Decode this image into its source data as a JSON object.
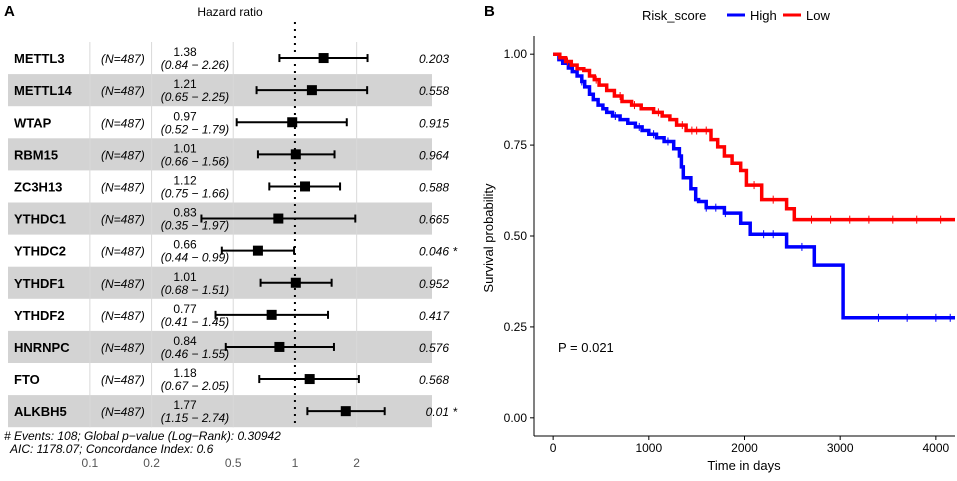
{
  "colors": {
    "high": "#0000ff",
    "low": "#ff0000",
    "stripe": "#d3d3d3",
    "grid": "#d9d9d9",
    "ink": "#000000"
  },
  "chart_data": [
    {
      "panel_label": "A",
      "type": "forest",
      "title": "Hazard ratio",
      "x_scale": "log",
      "xlim": [
        0.08,
        3.6
      ],
      "reference_line": 1,
      "xticks": [
        0.1,
        0.2,
        0.5,
        1,
        2
      ],
      "xtick_labels": [
        "0.1",
        "0.2",
        "0.5",
        "1",
        "2"
      ],
      "rows": [
        {
          "gene": "METTL3",
          "n": "(N=487)",
          "hr": 1.38,
          "ci_low": 0.84,
          "ci_high": 2.26,
          "hr_text": "1.38",
          "ci_text": "(0.84 − 2.26)",
          "p": "0.203",
          "sig": ""
        },
        {
          "gene": "METTL14",
          "n": "(N=487)",
          "hr": 1.21,
          "ci_low": 0.65,
          "ci_high": 2.25,
          "hr_text": "1.21",
          "ci_text": "(0.65 − 2.25)",
          "p": "0.558",
          "sig": ""
        },
        {
          "gene": "WTAP",
          "n": "(N=487)",
          "hr": 0.97,
          "ci_low": 0.52,
          "ci_high": 1.79,
          "hr_text": "0.97",
          "ci_text": "(0.52 − 1.79)",
          "p": "0.915",
          "sig": ""
        },
        {
          "gene": "RBM15",
          "n": "(N=487)",
          "hr": 1.01,
          "ci_low": 0.66,
          "ci_high": 1.56,
          "hr_text": "1.01",
          "ci_text": "(0.66 − 1.56)",
          "p": "0.964",
          "sig": ""
        },
        {
          "gene": "ZC3H13",
          "n": "(N=487)",
          "hr": 1.12,
          "ci_low": 0.75,
          "ci_high": 1.66,
          "hr_text": "1.12",
          "ci_text": "(0.75 − 1.66)",
          "p": "0.588",
          "sig": ""
        },
        {
          "gene": "YTHDC1",
          "n": "(N=487)",
          "hr": 0.83,
          "ci_low": 0.35,
          "ci_high": 1.97,
          "hr_text": "0.83",
          "ci_text": "(0.35 − 1.97)",
          "p": "0.665",
          "sig": ""
        },
        {
          "gene": "YTHDC2",
          "n": "(N=487)",
          "hr": 0.66,
          "ci_low": 0.44,
          "ci_high": 0.99,
          "hr_text": "0.66",
          "ci_text": "(0.44 − 0.99)",
          "p": "0.046",
          "sig": "*"
        },
        {
          "gene": "YTHDF1",
          "n": "(N=487)",
          "hr": 1.01,
          "ci_low": 0.68,
          "ci_high": 1.51,
          "hr_text": "1.01",
          "ci_text": "(0.68 − 1.51)",
          "p": "0.952",
          "sig": ""
        },
        {
          "gene": "YTHDF2",
          "n": "(N=487)",
          "hr": 0.77,
          "ci_low": 0.41,
          "ci_high": 1.45,
          "hr_text": "0.77",
          "ci_text": "(0.41 − 1.45)",
          "p": "0.417",
          "sig": ""
        },
        {
          "gene": "HNRNPC",
          "n": "(N=487)",
          "hr": 0.84,
          "ci_low": 0.46,
          "ci_high": 1.55,
          "hr_text": "0.84",
          "ci_text": "(0.46 − 1.55)",
          "p": "0.576",
          "sig": ""
        },
        {
          "gene": "FTO",
          "n": "(N=487)",
          "hr": 1.18,
          "ci_low": 0.67,
          "ci_high": 2.05,
          "hr_text": "1.18",
          "ci_text": "(0.67 − 2.05)",
          "p": "0.568",
          "sig": ""
        },
        {
          "gene": "ALKBH5",
          "n": "(N=487)",
          "hr": 1.77,
          "ci_low": 1.15,
          "ci_high": 2.74,
          "hr_text": "1.77",
          "ci_text": "(1.15 − 2.74)",
          "p": "0.01",
          "sig": "*"
        }
      ],
      "footer": [
        "# Events: 108; Global p−value (Log−Rank): 0.30942",
        "AIC: 1178.07; Concordance Index: 0.6"
      ]
    },
    {
      "panel_label": "B",
      "type": "line",
      "subtype": "kaplan-meier",
      "xlabel": "Time in days",
      "ylabel": "Survival probability",
      "xlim": [
        -200,
        4200
      ],
      "ylim": [
        -0.05,
        1.05
      ],
      "xticks": [
        0,
        1000,
        2000,
        3000,
        4000
      ],
      "yticks": [
        0.0,
        0.25,
        0.5,
        0.75,
        1.0
      ],
      "ytick_labels": [
        "0.00",
        "0.25",
        "0.50",
        "0.75",
        "1.00"
      ],
      "legend_title": "Risk_score",
      "legend_position": "top",
      "annotation": "P = 0.021",
      "series": [
        {
          "name": "High",
          "color_key": "high",
          "steps": [
            [
              0,
              1.0
            ],
            [
              60,
              0.985
            ],
            [
              100,
              0.975
            ],
            [
              160,
              0.962
            ],
            [
              200,
              0.952
            ],
            [
              250,
              0.94
            ],
            [
              300,
              0.925
            ],
            [
              330,
              0.91
            ],
            [
              380,
              0.89
            ],
            [
              420,
              0.875
            ],
            [
              470,
              0.86
            ],
            [
              520,
              0.85
            ],
            [
              560,
              0.84
            ],
            [
              620,
              0.83
            ],
            [
              700,
              0.82
            ],
            [
              780,
              0.81
            ],
            [
              860,
              0.8
            ],
            [
              930,
              0.79
            ],
            [
              1000,
              0.78
            ],
            [
              1080,
              0.77
            ],
            [
              1160,
              0.76
            ],
            [
              1260,
              0.74
            ],
            [
              1320,
              0.72
            ],
            [
              1340,
              0.69
            ],
            [
              1360,
              0.66
            ],
            [
              1440,
              0.63
            ],
            [
              1490,
              0.6
            ],
            [
              1520,
              0.595
            ],
            [
              1600,
              0.578
            ],
            [
              1790,
              0.563
            ],
            [
              1960,
              0.535
            ],
            [
              2060,
              0.505
            ],
            [
              2440,
              0.47
            ],
            [
              2730,
              0.42
            ],
            [
              3030,
              0.275
            ],
            [
              4200,
              0.275
            ]
          ],
          "censor_times": [
            300,
            650,
            900,
            1050,
            1200,
            1600,
            1700,
            1800,
            2200,
            2300,
            2600,
            3400,
            3700,
            4000,
            4150
          ]
        },
        {
          "name": "Low",
          "color_key": "low",
          "steps": [
            [
              0,
              1.0
            ],
            [
              70,
              0.99
            ],
            [
              130,
              0.98
            ],
            [
              190,
              0.97
            ],
            [
              250,
              0.96
            ],
            [
              320,
              0.955
            ],
            [
              380,
              0.94
            ],
            [
              430,
              0.93
            ],
            [
              480,
              0.915
            ],
            [
              560,
              0.9
            ],
            [
              640,
              0.885
            ],
            [
              720,
              0.87
            ],
            [
              820,
              0.86
            ],
            [
              920,
              0.85
            ],
            [
              1050,
              0.84
            ],
            [
              1140,
              0.83
            ],
            [
              1220,
              0.82
            ],
            [
              1290,
              0.805
            ],
            [
              1390,
              0.79
            ],
            [
              1650,
              0.765
            ],
            [
              1720,
              0.745
            ],
            [
              1790,
              0.72
            ],
            [
              1870,
              0.7
            ],
            [
              1960,
              0.68
            ],
            [
              2020,
              0.64
            ],
            [
              2180,
              0.6
            ],
            [
              2440,
              0.575
            ],
            [
              2520,
              0.545
            ],
            [
              4200,
              0.545
            ]
          ],
          "censor_times": [
            150,
            450,
            700,
            850,
            1100,
            1350,
            1450,
            1500,
            1600,
            2100,
            2300,
            2700,
            2900,
            3100,
            3300,
            3550,
            3800,
            4050
          ]
        }
      ]
    }
  ]
}
